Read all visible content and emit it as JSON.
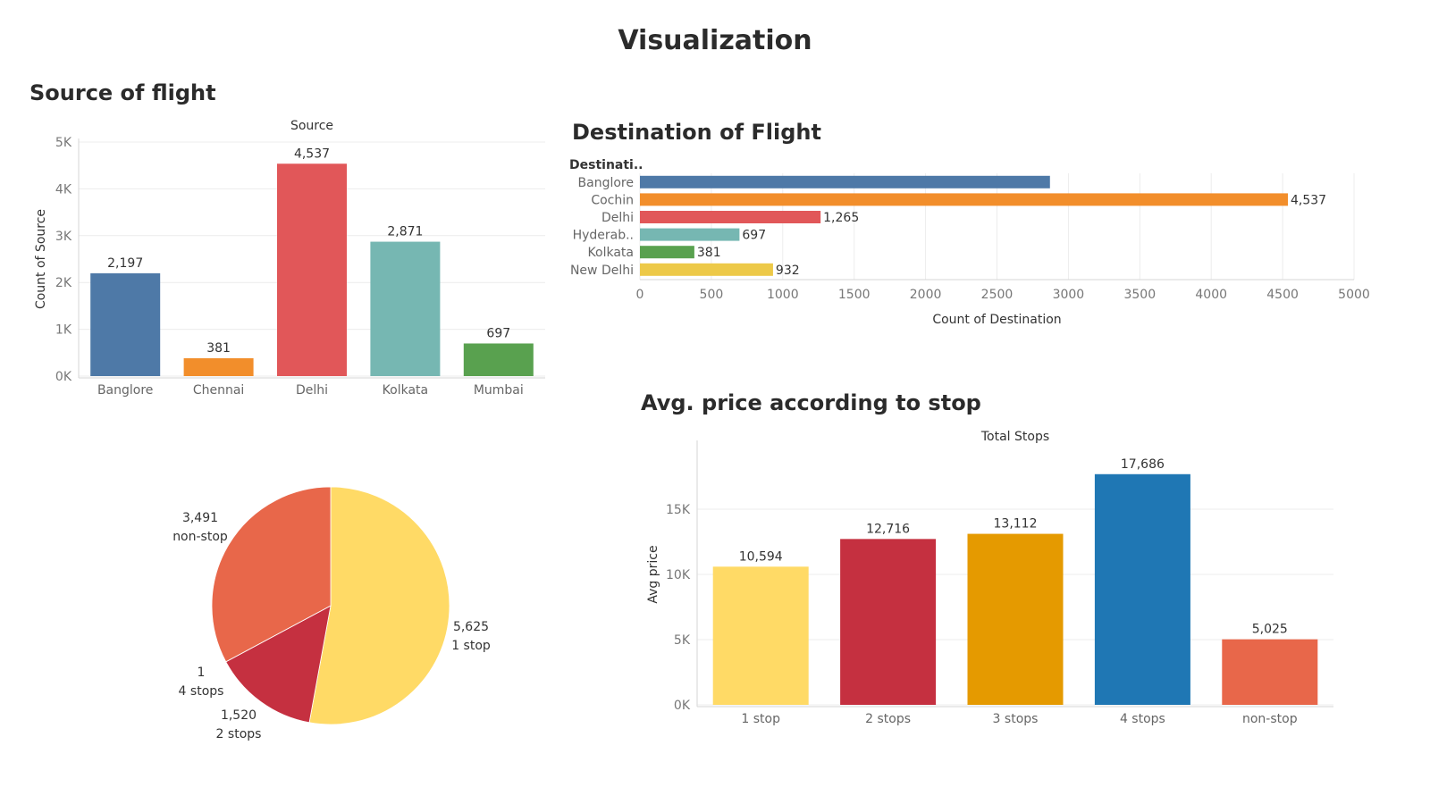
{
  "page_title": "Visualization",
  "chart_data": [
    {
      "id": "source",
      "type": "bar",
      "title": "Source of flight",
      "header": "Source",
      "ylabel": "Count of Source",
      "categories": [
        "Banglore",
        "Chennai",
        "Delhi",
        "Kolkata",
        "Mumbai"
      ],
      "values": [
        2197,
        381,
        4537,
        2871,
        697
      ],
      "value_labels": [
        "2,197",
        "381",
        "4,537",
        "2,871",
        "697"
      ],
      "colors": [
        "#4e79a7",
        "#f28e2b",
        "#e15759",
        "#76b7b2",
        "#59a14f"
      ],
      "ylim": [
        0,
        5000
      ],
      "yticks": [
        0,
        1000,
        2000,
        3000,
        4000,
        5000
      ],
      "ytick_labels": [
        "0K",
        "1K",
        "2K",
        "3K",
        "4K",
        "5K"
      ],
      "grid": true
    },
    {
      "id": "destination",
      "type": "bar",
      "orientation": "horizontal",
      "title": "Destination of Flight",
      "header": "Destinati..",
      "xlabel": "Count of Destination",
      "categories": [
        "Banglore",
        "Cochin",
        "Delhi",
        "Hyderab..",
        "Kolkata",
        "New Delhi"
      ],
      "values": [
        2871,
        4537,
        1265,
        697,
        381,
        932
      ],
      "value_labels": [
        "",
        "4,537",
        "1,265",
        "697",
        "381",
        "932"
      ],
      "colors": [
        "#4e79a7",
        "#f28e2b",
        "#e15759",
        "#76b7b2",
        "#59a14f",
        "#edc948"
      ],
      "xlim": [
        0,
        5000
      ],
      "xticks": [
        0,
        500,
        1000,
        1500,
        2000,
        2500,
        3000,
        3500,
        4000,
        4500,
        5000
      ],
      "xtick_labels": [
        "0",
        "500",
        "1000",
        "1500",
        "2000",
        "2500",
        "3000",
        "3500",
        "4000",
        "4500",
        "5000"
      ],
      "grid": true
    },
    {
      "id": "stops-pie",
      "type": "pie",
      "slices": [
        {
          "label": "1 stop",
          "value": 5625,
          "value_label": "5,625",
          "color": "#ffda66"
        },
        {
          "label": "2 stops",
          "value": 1520,
          "value_label": "1,520",
          "color": "#c53040"
        },
        {
          "label": "4 stops",
          "value": 1,
          "value_label": "1",
          "color": "#e59a00"
        },
        {
          "label": "non-stop",
          "value": 3491,
          "value_label": "3,491",
          "color": "#e8674a"
        }
      ]
    },
    {
      "id": "avg-price",
      "type": "bar",
      "title": "Avg. price according to stop",
      "header": "Total Stops",
      "ylabel": "Avg price",
      "categories": [
        "1 stop",
        "2 stops",
        "3 stops",
        "4 stops",
        "non-stop"
      ],
      "values": [
        10594,
        12716,
        13112,
        17686,
        5025
      ],
      "value_labels": [
        "10,594",
        "12,716",
        "13,112",
        "17,686",
        "5,025"
      ],
      "colors": [
        "#ffda66",
        "#c53040",
        "#e59a00",
        "#1f77b4",
        "#e8674a"
      ],
      "ylim": [
        0,
        20000
      ],
      "yticks": [
        0,
        5000,
        10000,
        15000
      ],
      "ytick_labels": [
        "0K",
        "5K",
        "10K",
        "15K"
      ],
      "grid": true
    }
  ]
}
